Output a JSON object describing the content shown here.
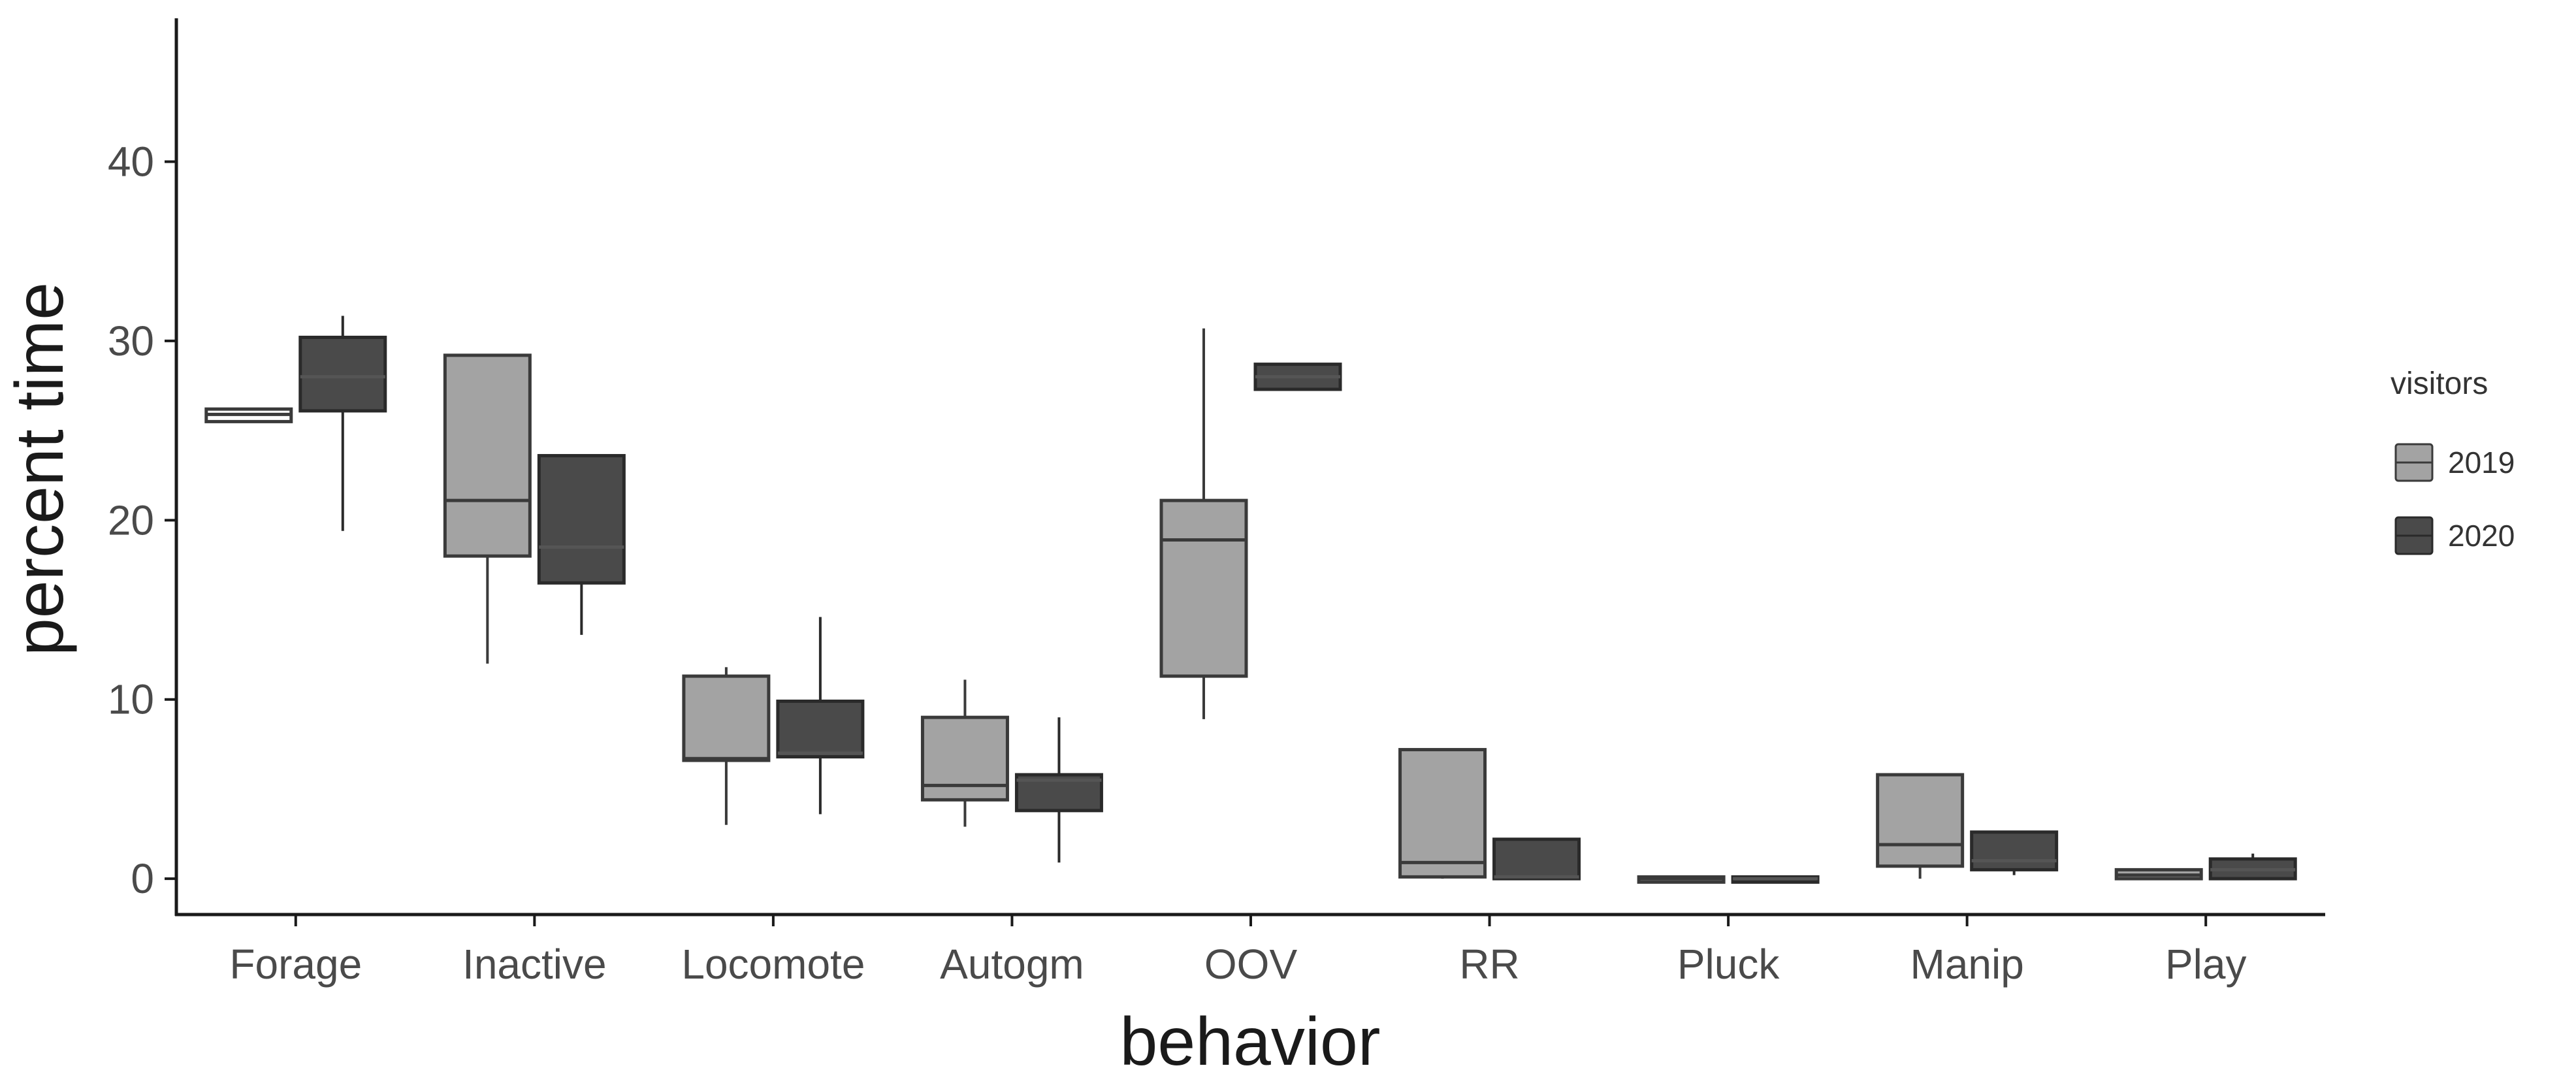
{
  "chart_data": {
    "type": "boxplot",
    "title": "",
    "xlabel": "behavior",
    "ylabel": "percent time",
    "ylim": [
      -2,
      48
    ],
    "yticks": [
      0,
      10,
      20,
      30,
      40
    ],
    "grid": false,
    "categories": [
      "Forage",
      "Inactive",
      "Locomote",
      "Autogm",
      "OOV",
      "RR",
      "Pluck",
      "Manip",
      "Play"
    ],
    "legend": {
      "title": "visitors",
      "position": "right"
    },
    "series": [
      {
        "name": "2019",
        "fill": "#a3a3a3",
        "stroke": "#3a3a3a",
        "boxes": [
          {
            "category": "Forage",
            "lower": 25.5,
            "q1": 25.5,
            "median": 25.9,
            "q3": 26.2,
            "upper": 26.2,
            "fill": "#ffffff"
          },
          {
            "category": "Inactive",
            "lower": 12.0,
            "q1": 18.0,
            "median": 21.1,
            "q3": 29.2,
            "upper": 29.2
          },
          {
            "category": "Locomote",
            "lower": 3.0,
            "q1": 6.6,
            "median": 6.7,
            "q3": 11.3,
            "upper": 11.8
          },
          {
            "category": "Autogm",
            "lower": 2.9,
            "q1": 4.4,
            "median": 5.2,
            "q3": 9.0,
            "upper": 11.1
          },
          {
            "category": "OOV",
            "lower": 8.9,
            "q1": 11.3,
            "median": 18.9,
            "q3": 21.1,
            "upper": 30.7
          },
          {
            "category": "RR",
            "lower": 0.0,
            "q1": 0.1,
            "median": 0.9,
            "q3": 7.2,
            "upper": 7.2
          },
          {
            "category": "Pluck",
            "lower": 0.0,
            "q1": 0.0,
            "median": 0.0,
            "q3": 0.1,
            "upper": 0.1
          },
          {
            "category": "Manip",
            "lower": 0.0,
            "q1": 0.7,
            "median": 1.9,
            "q3": 5.8,
            "upper": 5.8
          },
          {
            "category": "Play",
            "lower": 0.0,
            "q1": 0.0,
            "median": 0.2,
            "q3": 0.5,
            "upper": 0.5
          }
        ]
      },
      {
        "name": "2020",
        "fill": "#4a4a4a",
        "stroke": "#2a2a2a",
        "boxes": [
          {
            "category": "Forage",
            "lower": 19.4,
            "q1": 26.1,
            "median": 28.0,
            "q3": 30.2,
            "upper": 31.4
          },
          {
            "category": "Inactive",
            "lower": 13.6,
            "q1": 16.5,
            "median": 18.5,
            "q3": 23.6,
            "upper": 23.6
          },
          {
            "category": "Locomote",
            "lower": 3.6,
            "q1": 6.8,
            "median": 7.0,
            "q3": 9.9,
            "upper": 14.6
          },
          {
            "category": "Autogm",
            "lower": 0.9,
            "q1": 3.8,
            "median": 5.5,
            "q3": 5.8,
            "upper": 9.0
          },
          {
            "category": "OOV",
            "lower": 27.3,
            "q1": 27.3,
            "median": 28.0,
            "q3": 28.7,
            "upper": 28.7
          },
          {
            "category": "RR",
            "lower": 0.0,
            "q1": 0.0,
            "median": 0.1,
            "q3": 2.2,
            "upper": 2.2
          },
          {
            "category": "Pluck",
            "lower": 0.0,
            "q1": 0.0,
            "median": 0.0,
            "q3": 0.1,
            "upper": 0.1
          },
          {
            "category": "Manip",
            "lower": 0.2,
            "q1": 0.5,
            "median": 1.0,
            "q3": 2.6,
            "upper": 2.6
          },
          {
            "category": "Play",
            "lower": 0.0,
            "q1": 0.0,
            "median": 0.5,
            "q3": 1.1,
            "upper": 1.4
          }
        ]
      }
    ]
  }
}
